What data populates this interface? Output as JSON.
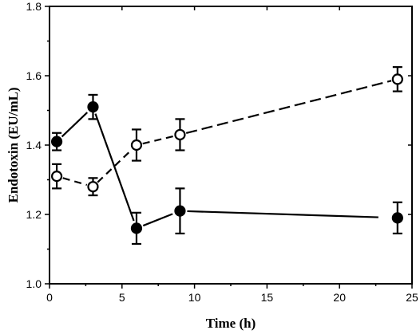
{
  "chart_data": {
    "type": "line",
    "xlabel": "Time (h)",
    "ylabel": "Endotoxin (EU/mL)",
    "xlim": [
      0,
      25
    ],
    "ylim": [
      1.0,
      1.8
    ],
    "x_ticks": [
      0,
      5,
      10,
      15,
      20,
      25
    ],
    "y_ticks": [
      1.0,
      1.2,
      1.4,
      1.6,
      1.8
    ],
    "x_tick_labels": [
      "0",
      "5",
      "10",
      "15",
      "20",
      "25"
    ],
    "y_tick_labels": [
      "1.0",
      "1.2",
      "1.4",
      "1.6",
      "1.8"
    ],
    "grid": false,
    "series": [
      {
        "marker": "filled-circle",
        "line_style": "solid-segments",
        "color": "#000000",
        "x": [
          0.5,
          3,
          6,
          9,
          24
        ],
        "y": [
          1.41,
          1.51,
          1.16,
          1.21,
          1.19
        ],
        "error": [
          0.025,
          0.035,
          0.045,
          0.065,
          0.045
        ]
      },
      {
        "marker": "open-circle",
        "line_style": "dashed",
        "color": "#000000",
        "x": [
          0.5,
          3,
          6,
          9,
          24
        ],
        "y": [
          1.31,
          1.28,
          1.4,
          1.43,
          1.59
        ],
        "error": [
          0.035,
          0.025,
          0.045,
          0.045,
          0.035
        ]
      }
    ]
  }
}
